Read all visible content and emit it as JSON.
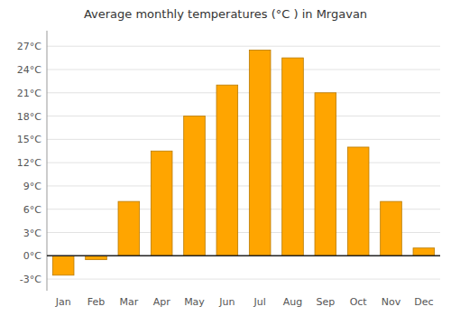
{
  "chart_data": {
    "type": "bar",
    "title": "Average monthly temperatures (°C ) in Mrgavan",
    "categories": [
      "Jan",
      "Feb",
      "Mar",
      "Apr",
      "May",
      "Jun",
      "Jul",
      "Aug",
      "Sep",
      "Oct",
      "Nov",
      "Dec"
    ],
    "values": [
      -2.5,
      -0.5,
      7.0,
      13.5,
      18.0,
      22.0,
      26.5,
      25.5,
      21.0,
      14.0,
      7.0,
      1.0
    ],
    "color": "#FFA500",
    "ylim": [
      -4.5,
      29
    ],
    "yticks": [
      {
        "value": -3,
        "label": "-3°C"
      },
      {
        "value": 0,
        "label": "0°C"
      },
      {
        "value": 3,
        "label": "3°C"
      },
      {
        "value": 6,
        "label": "6°C"
      },
      {
        "value": 9,
        "label": "9°C"
      },
      {
        "value": 12,
        "label": "12°C"
      },
      {
        "value": 15,
        "label": "15°C"
      },
      {
        "value": 18,
        "label": "18°C"
      },
      {
        "value": 21,
        "label": "21°C"
      },
      {
        "value": 24,
        "label": "24°C"
      },
      {
        "value": 27,
        "label": "27°C"
      }
    ],
    "grid": true
  }
}
